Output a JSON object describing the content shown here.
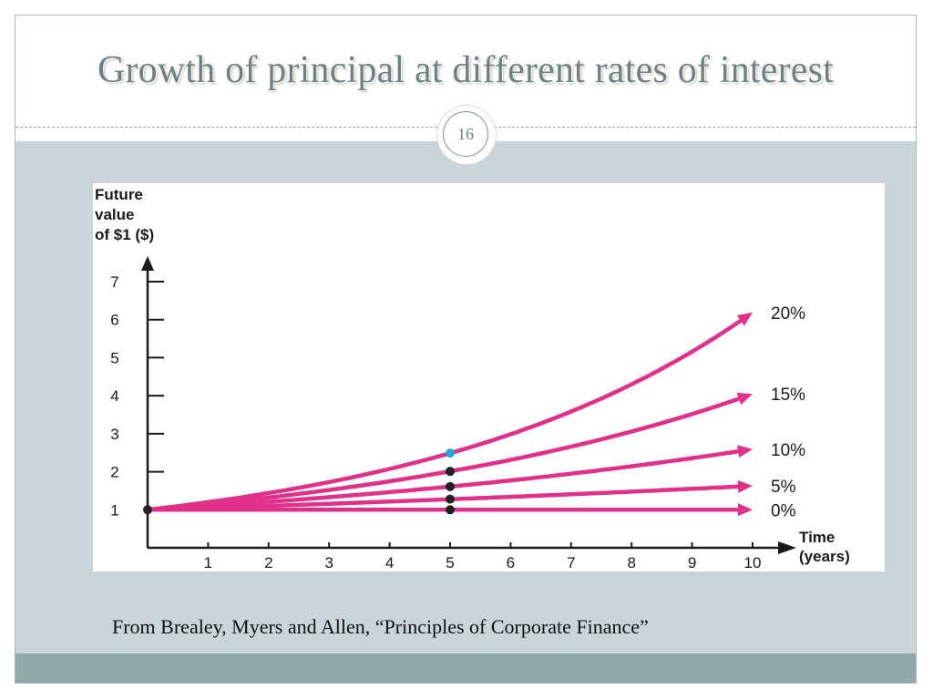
{
  "slide": {
    "title": "Growth of principal at different rates of interest",
    "page_number": "16",
    "caption": "From Brealey, Myers and Allen, “Principles of Corporate Finance”"
  },
  "colors": {
    "background": "#c9d5d8",
    "bottom_band": "#8fa9ab",
    "title": "#6e8082",
    "series_line": "#e0308a",
    "marker": "#222222",
    "highlight_marker": "#29a3dc"
  },
  "chart_data": {
    "type": "line",
    "ylabel_lines": [
      "Future",
      "value",
      "of $1 ($)"
    ],
    "xlabel_lines": [
      "Time",
      "(years)"
    ],
    "xlim": [
      0,
      10
    ],
    "ylim": [
      0,
      7
    ],
    "x_ticks": [
      1,
      2,
      3,
      4,
      5,
      6,
      7,
      8,
      9,
      10
    ],
    "y_ticks": [
      1,
      2,
      3,
      4,
      5,
      6,
      7
    ],
    "grid": false,
    "legend": "none",
    "series": [
      {
        "name": "20%",
        "rate": 0.2,
        "x": [
          0,
          1,
          2,
          3,
          4,
          5,
          6,
          7,
          8,
          9,
          10
        ],
        "y": [
          1,
          1.2,
          1.44,
          1.73,
          2.07,
          2.49,
          2.99,
          3.58,
          4.3,
          5.16,
          6.19
        ]
      },
      {
        "name": "15%",
        "rate": 0.15,
        "x": [
          0,
          1,
          2,
          3,
          4,
          5,
          6,
          7,
          8,
          9,
          10
        ],
        "y": [
          1,
          1.15,
          1.32,
          1.52,
          1.75,
          2.01,
          2.31,
          2.66,
          3.06,
          3.52,
          4.05
        ]
      },
      {
        "name": "10%",
        "rate": 0.1,
        "x": [
          0,
          1,
          2,
          3,
          4,
          5,
          6,
          7,
          8,
          9,
          10
        ],
        "y": [
          1,
          1.1,
          1.21,
          1.33,
          1.46,
          1.61,
          1.77,
          1.95,
          2.14,
          2.36,
          2.59
        ]
      },
      {
        "name": "5%",
        "rate": 0.05,
        "x": [
          0,
          1,
          2,
          3,
          4,
          5,
          6,
          7,
          8,
          9,
          10
        ],
        "y": [
          1,
          1.05,
          1.1,
          1.16,
          1.22,
          1.28,
          1.34,
          1.41,
          1.48,
          1.55,
          1.63
        ]
      },
      {
        "name": "0%",
        "rate": 0.0,
        "x": [
          0,
          1,
          2,
          3,
          4,
          5,
          6,
          7,
          8,
          9,
          10
        ],
        "y": [
          1,
          1,
          1,
          1,
          1,
          1,
          1,
          1,
          1,
          1,
          1
        ]
      }
    ],
    "markers": [
      {
        "x": 0,
        "y": 1,
        "highlight": false
      },
      {
        "x": 5,
        "y": 2.49,
        "highlight": true
      },
      {
        "x": 5,
        "y": 2.01,
        "highlight": false
      },
      {
        "x": 5,
        "y": 1.61,
        "highlight": false
      },
      {
        "x": 5,
        "y": 1.28,
        "highlight": false
      },
      {
        "x": 5,
        "y": 1.0,
        "highlight": false
      }
    ]
  }
}
